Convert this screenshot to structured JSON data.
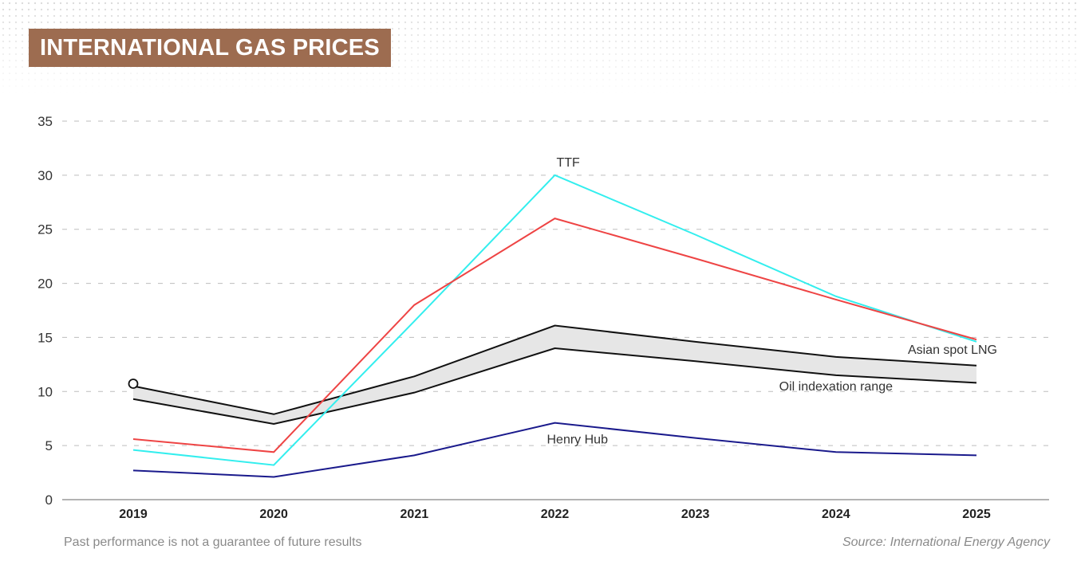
{
  "header": {
    "title": "INTERNATIONAL GAS PRICES"
  },
  "footer": {
    "disclaimer": "Past performance is not a guarantee of future results",
    "source": "Source: International Energy Agency"
  },
  "chart_data": {
    "type": "line",
    "title": "INTERNATIONAL GAS PRICES",
    "xlabel": "",
    "ylabel": "",
    "categories": [
      "2019",
      "2020",
      "2021",
      "2022",
      "2023",
      "2024",
      "2025"
    ],
    "ylim": [
      0,
      35
    ],
    "yticks": [
      0,
      5,
      10,
      15,
      20,
      25,
      30,
      35
    ],
    "grid": true,
    "series": [
      {
        "name": "TTF",
        "color": "#33eeee",
        "values": [
          4.6,
          3.2,
          16.5,
          30.0,
          24.5,
          18.8,
          14.6
        ]
      },
      {
        "name": "Asian spot LNG",
        "color": "#ee4444",
        "values": [
          5.6,
          4.4,
          18.0,
          26.0,
          22.3,
          18.5,
          14.8
        ]
      },
      {
        "name": "Henry Hub",
        "color": "#1a1a8c",
        "values": [
          2.7,
          2.1,
          4.1,
          7.1,
          5.7,
          4.4,
          4.1
        ]
      }
    ],
    "band": {
      "name": "Oil indexation range",
      "color": "#111111",
      "fill": "#e6e6e6",
      "upper": [
        10.5,
        7.9,
        11.4,
        16.1,
        14.6,
        13.2,
        12.4
      ],
      "lower": [
        9.3,
        7.0,
        9.9,
        14.0,
        12.8,
        11.5,
        10.8
      ]
    },
    "annotations": [
      {
        "text": "TTF",
        "x": "2022",
        "y": 30.8
      },
      {
        "text": "Asian spot LNG",
        "x": "2025",
        "y": 13.5
      },
      {
        "text": "Oil indexation range",
        "x": "2024",
        "y": 10.1
      },
      {
        "text": "Henry Hub",
        "x": "2022",
        "y": 5.2
      }
    ]
  }
}
